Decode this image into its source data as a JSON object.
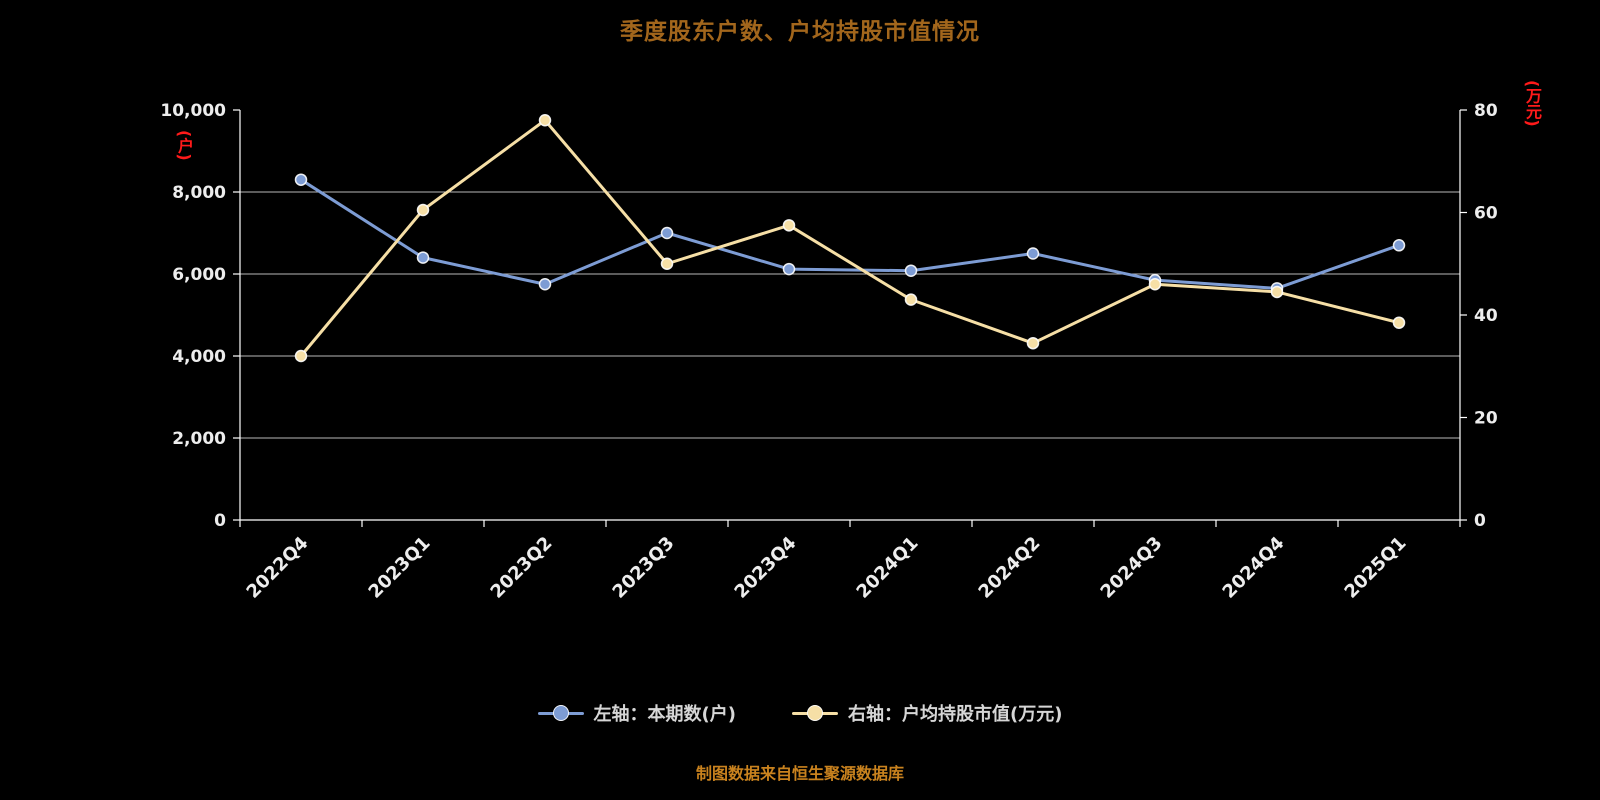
{
  "footer": "制图数据来自恒生聚源数据库",
  "colors": {
    "background": "#000000",
    "title": "#a2661c",
    "axis_unit": "#ff1a1a",
    "tick_text": "#ededed",
    "grid_line": "#d8d8d8",
    "axis_line": "#ffffff",
    "footer_text": "#c9821e",
    "series_blue": "#7d9cd4",
    "series_yellow": "#f6dfa6"
  },
  "chart_data": {
    "type": "line",
    "title": "季度股东户数、户均持股市值情况",
    "categories": [
      "2022Q4",
      "2023Q1",
      "2023Q2",
      "2023Q3",
      "2023Q4",
      "2024Q1",
      "2024Q2",
      "2024Q3",
      "2024Q4",
      "2025Q1"
    ],
    "series": [
      {
        "name": "左轴：本期数(户)",
        "axis": "left",
        "color": "#7d9cd4",
        "values": [
          8300,
          6400,
          5750,
          7000,
          6120,
          6080,
          6500,
          5850,
          5650,
          6700
        ]
      },
      {
        "name": "右轴：户均持股市值(万元)",
        "axis": "right",
        "color": "#f6dfa6",
        "values": [
          32,
          60.5,
          78,
          50,
          57.5,
          43,
          34.5,
          46,
          44.5,
          38.5
        ]
      }
    ],
    "left_axis": {
      "unit": "(户)",
      "min": 0,
      "max": 10000,
      "tick_values": [
        0,
        2000,
        4000,
        6000,
        8000,
        10000
      ],
      "tick_labels": [
        "0",
        "2,000",
        "4,000",
        "6,000",
        "8,000",
        "10,000"
      ]
    },
    "right_axis": {
      "unit": "(万元)",
      "min": 0,
      "max": 80,
      "tick_values": [
        0,
        20,
        40,
        60,
        80
      ],
      "tick_labels": [
        "0",
        "20",
        "40",
        "60",
        "80"
      ]
    },
    "grid": true,
    "legend_position": "bottom"
  }
}
